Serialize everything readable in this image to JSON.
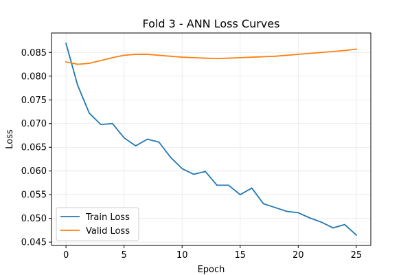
{
  "chart_data": {
    "type": "line",
    "title": "Fold 3 - ANN Loss Curves",
    "xlabel": "Epoch",
    "ylabel": "Loss",
    "x": [
      0,
      1,
      2,
      3,
      4,
      5,
      6,
      7,
      8,
      9,
      10,
      11,
      12,
      13,
      14,
      15,
      16,
      17,
      18,
      19,
      20,
      21,
      22,
      23,
      24,
      25
    ],
    "xlim": [
      -1.25,
      26.25
    ],
    "ylim": [
      0.0443,
      0.0891
    ],
    "xticks": [
      0,
      5,
      10,
      15,
      20,
      25
    ],
    "xtick_labels": [
      "0",
      "5",
      "10",
      "15",
      "20",
      "25"
    ],
    "yticks": [
      0.045,
      0.05,
      0.055,
      0.06,
      0.065,
      0.07,
      0.075,
      0.08,
      0.085
    ],
    "ytick_labels": [
      "0.045",
      "0.050",
      "0.055",
      "0.060",
      "0.065",
      "0.070",
      "0.075",
      "0.080",
      "0.085"
    ],
    "grid": true,
    "legend_position": "lower-left",
    "series": [
      {
        "name": "Train Loss",
        "color": "#1f77b4",
        "values": [
          0.0869,
          0.0781,
          0.0722,
          0.0698,
          0.07,
          0.067,
          0.0653,
          0.0667,
          0.0661,
          0.0629,
          0.0605,
          0.0593,
          0.0599,
          0.057,
          0.057,
          0.055,
          0.0564,
          0.0531,
          0.0523,
          0.0515,
          0.0512,
          0.0501,
          0.0492,
          0.048,
          0.0487,
          0.0465
        ]
      },
      {
        "name": "Valid Loss",
        "color": "#ff7f0e",
        "values": [
          0.083,
          0.0825,
          0.0827,
          0.0833,
          0.0839,
          0.0844,
          0.0846,
          0.0846,
          0.0844,
          0.0842,
          0.084,
          0.0839,
          0.0838,
          0.0837,
          0.0838,
          0.0839,
          0.084,
          0.0841,
          0.0842,
          0.0844,
          0.0846,
          0.0848,
          0.085,
          0.0852,
          0.0854,
          0.0857
        ]
      }
    ]
  }
}
